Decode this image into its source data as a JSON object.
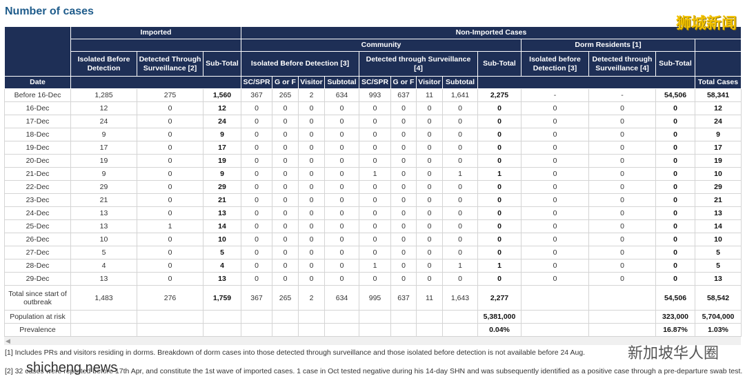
{
  "title": "Number of cases",
  "header": {
    "imported": "Imported",
    "non_imported": "Non-Imported Cases",
    "community": "Community",
    "dorm": "Dorm Residents [1]",
    "imp_isolated": "Isolated Before Detection",
    "imp_surv": "Detected Through Surveillance [2]",
    "imp_sub": "Sub-Total",
    "com_isolated": "Isolated Before Detection [3]",
    "com_surv": "Detected through Surveillance [4]",
    "com_sub": "Sub-Total",
    "dorm_isolated": "Isolated before Detection [3]",
    "dorm_surv": "Detected through Surveillance [4]",
    "dorm_sub": "Sub-Total",
    "date": "Date",
    "sub_cols": [
      "SC/SPR",
      "G or F",
      "Visitor",
      "Subtotal",
      "SC/SPR",
      "G or F",
      "Visitor",
      "Subtotal"
    ],
    "total": "Total Cases"
  },
  "table": {
    "rows": [
      [
        "Before 16-Dec",
        "1,285",
        "275",
        "1,560",
        "367",
        "265",
        "2",
        "634",
        "993",
        "637",
        "11",
        "1,641",
        "2,275",
        "-",
        "-",
        "54,506",
        "58,341"
      ],
      [
        "16-Dec",
        "12",
        "0",
        "12",
        "0",
        "0",
        "0",
        "0",
        "0",
        "0",
        "0",
        "0",
        "0",
        "0",
        "0",
        "0",
        "12"
      ],
      [
        "17-Dec",
        "24",
        "0",
        "24",
        "0",
        "0",
        "0",
        "0",
        "0",
        "0",
        "0",
        "0",
        "0",
        "0",
        "0",
        "0",
        "24"
      ],
      [
        "18-Dec",
        "9",
        "0",
        "9",
        "0",
        "0",
        "0",
        "0",
        "0",
        "0",
        "0",
        "0",
        "0",
        "0",
        "0",
        "0",
        "9"
      ],
      [
        "19-Dec",
        "17",
        "0",
        "17",
        "0",
        "0",
        "0",
        "0",
        "0",
        "0",
        "0",
        "0",
        "0",
        "0",
        "0",
        "0",
        "17"
      ],
      [
        "20-Dec",
        "19",
        "0",
        "19",
        "0",
        "0",
        "0",
        "0",
        "0",
        "0",
        "0",
        "0",
        "0",
        "0",
        "0",
        "0",
        "19"
      ],
      [
        "21-Dec",
        "9",
        "0",
        "9",
        "0",
        "0",
        "0",
        "0",
        "1",
        "0",
        "0",
        "1",
        "1",
        "0",
        "0",
        "0",
        "10"
      ],
      [
        "22-Dec",
        "29",
        "0",
        "29",
        "0",
        "0",
        "0",
        "0",
        "0",
        "0",
        "0",
        "0",
        "0",
        "0",
        "0",
        "0",
        "29"
      ],
      [
        "23-Dec",
        "21",
        "0",
        "21",
        "0",
        "0",
        "0",
        "0",
        "0",
        "0",
        "0",
        "0",
        "0",
        "0",
        "0",
        "0",
        "21"
      ],
      [
        "24-Dec",
        "13",
        "0",
        "13",
        "0",
        "0",
        "0",
        "0",
        "0",
        "0",
        "0",
        "0",
        "0",
        "0",
        "0",
        "0",
        "13"
      ],
      [
        "25-Dec",
        "13",
        "1",
        "14",
        "0",
        "0",
        "0",
        "0",
        "0",
        "0",
        "0",
        "0",
        "0",
        "0",
        "0",
        "0",
        "14"
      ],
      [
        "26-Dec",
        "10",
        "0",
        "10",
        "0",
        "0",
        "0",
        "0",
        "0",
        "0",
        "0",
        "0",
        "0",
        "0",
        "0",
        "0",
        "10"
      ],
      [
        "27-Dec",
        "5",
        "0",
        "5",
        "0",
        "0",
        "0",
        "0",
        "0",
        "0",
        "0",
        "0",
        "0",
        "0",
        "0",
        "0",
        "5"
      ],
      [
        "28-Dec",
        "4",
        "0",
        "4",
        "0",
        "0",
        "0",
        "0",
        "1",
        "0",
        "0",
        "1",
        "1",
        "0",
        "0",
        "0",
        "5"
      ],
      [
        "29-Dec",
        "13",
        "0",
        "13",
        "0",
        "0",
        "0",
        "0",
        "0",
        "0",
        "0",
        "0",
        "0",
        "0",
        "0",
        "0",
        "13"
      ],
      [
        "Total since start of outbreak",
        "1,483",
        "276",
        "1,759",
        "367",
        "265",
        "2",
        "634",
        "995",
        "637",
        "11",
        "1,643",
        "2,277",
        null,
        null,
        "54,506",
        "58,542"
      ],
      [
        "Population at risk",
        null,
        null,
        null,
        null,
        null,
        null,
        null,
        null,
        null,
        null,
        null,
        "5,381,000",
        null,
        null,
        "323,000",
        "5,704,000"
      ],
      [
        "Prevalence",
        null,
        null,
        null,
        null,
        null,
        null,
        null,
        null,
        null,
        null,
        null,
        "0.04%",
        null,
        null,
        "16.87%",
        "1.03%"
      ]
    ]
  },
  "footnotes": [
    "[1] Includes PRs and visitors residing in dorms. Breakdown of dorm cases into those detected through surveillance and those isolated before detection is not available before 24 Aug.",
    "[2] 32 cases were reported before 17th Apr, and constitute the 1st wave of imported cases. 1 case in Oct tested negative during his 14-day SHN and was subsequently identified as a positive case through a pre-departure swab test."
  ],
  "watermarks": [
    "狮城新闻",
    "新加坡华人圈",
    "shicheng.news"
  ]
}
